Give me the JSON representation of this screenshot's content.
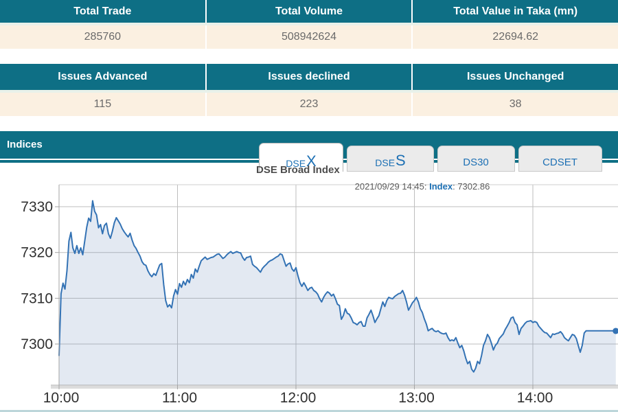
{
  "summary_tables": [
    {
      "headers": [
        "Total Trade",
        "Total Volume",
        "Total Value in Taka (mn)"
      ],
      "values": [
        "285760",
        "508942624",
        "22694.62"
      ]
    },
    {
      "headers": [
        "Issues Advanced",
        "Issues declined",
        "Issues Unchanged"
      ],
      "values": [
        "115",
        "223",
        "38"
      ]
    }
  ],
  "indices": {
    "section_title": "Indices",
    "tabs": [
      {
        "small": "DSE",
        "big": "X",
        "active": true
      },
      {
        "small": "DSE",
        "big": "S",
        "active": false
      },
      {
        "small": "DS30",
        "big": "",
        "active": false
      },
      {
        "small": "CDSET",
        "big": "",
        "active": false
      }
    ]
  },
  "chart_data": {
    "type": "area",
    "title": "DSE Broad Index",
    "annotation": {
      "prefix": "2021/09/29 14:45: ",
      "label": "Index",
      "separator": ": ",
      "value": "7302.86"
    },
    "x_axis": {
      "unit": "minutes since 10:00",
      "start": "10:00",
      "end": "14:45",
      "ticks": [
        {
          "label": "10:00",
          "minute": 0
        },
        {
          "label": "11:00",
          "minute": 60
        },
        {
          "label": "12:00",
          "minute": 120
        },
        {
          "label": "13:00",
          "minute": 180
        },
        {
          "label": "14:00",
          "minute": 240
        }
      ]
    },
    "y_axis": {
      "ticks": [
        7300,
        7310,
        7320,
        7330
      ],
      "range": [
        7291,
        7335
      ]
    },
    "grid": true,
    "legend": "none",
    "end_marker": true,
    "colors": {
      "line": "#3372b4",
      "fill": "rgba(101,135,183,0.18)",
      "grid": "#bdbdbd",
      "axis": "#a3a3a3",
      "axis_band": "#dcdcdc",
      "tick_text": "#2f2f2f"
    },
    "series": [
      {
        "name": "DSEX",
        "last_value": 7302.86,
        "points": [
          [
            0,
            7297.5
          ],
          [
            1,
            7311
          ],
          [
            2,
            7313.3
          ],
          [
            3,
            7312
          ],
          [
            4,
            7316
          ],
          [
            5,
            7322.5
          ],
          [
            6,
            7324.4
          ],
          [
            7,
            7321
          ],
          [
            8,
            7319.8
          ],
          [
            9,
            7321.5
          ],
          [
            10,
            7319.8
          ],
          [
            11,
            7321
          ],
          [
            12,
            7319.5
          ],
          [
            13,
            7322.5
          ],
          [
            14,
            7325.5
          ],
          [
            15,
            7327.5
          ],
          [
            16,
            7326.8
          ],
          [
            17,
            7331.3
          ],
          [
            18,
            7329
          ],
          [
            19,
            7328.2
          ],
          [
            20,
            7325.4
          ],
          [
            21,
            7326.1
          ],
          [
            22,
            7324.1
          ],
          [
            23,
            7325.9
          ],
          [
            24,
            7326.4
          ],
          [
            25,
            7324.1
          ],
          [
            26,
            7323.1
          ],
          [
            27,
            7324.6
          ],
          [
            28,
            7326.5
          ],
          [
            29,
            7327.6
          ],
          [
            30,
            7326.9
          ],
          [
            31,
            7326.2
          ],
          [
            32,
            7325.2
          ],
          [
            33,
            7324.5
          ],
          [
            34,
            7323.9
          ],
          [
            35,
            7323.4
          ],
          [
            36,
            7324.2
          ],
          [
            37,
            7322.7
          ],
          [
            38,
            7321.5
          ],
          [
            39,
            7320.9
          ],
          [
            40,
            7320
          ],
          [
            41,
            7319.2
          ],
          [
            42,
            7318
          ],
          [
            43,
            7317.4
          ],
          [
            44,
            7317.2
          ],
          [
            45,
            7316
          ],
          [
            46,
            7315.2
          ],
          [
            47,
            7314.7
          ],
          [
            48,
            7315.4
          ],
          [
            49,
            7315
          ],
          [
            50,
            7316.2
          ],
          [
            51,
            7317.3
          ],
          [
            52,
            7317.6
          ],
          [
            53,
            7313
          ],
          [
            54,
            7309.5
          ],
          [
            55,
            7308.1
          ],
          [
            56,
            7308.6
          ],
          [
            57,
            7307.9
          ],
          [
            58,
            7310.5
          ],
          [
            59,
            7311.9
          ],
          [
            60,
            7310.9
          ],
          [
            61,
            7313.2
          ],
          [
            62,
            7312.4
          ],
          [
            63,
            7313.7
          ],
          [
            64,
            7312.9
          ],
          [
            65,
            7314.1
          ],
          [
            66,
            7313.4
          ],
          [
            67,
            7315.2
          ],
          [
            68,
            7314.4
          ],
          [
            69,
            7316.4
          ],
          [
            70,
            7315.7
          ],
          [
            71,
            7317
          ],
          [
            72,
            7318.2
          ],
          [
            73,
            7318.6
          ],
          [
            74,
            7319
          ],
          [
            75,
            7318.5
          ],
          [
            76,
            7318.7
          ],
          [
            77,
            7318.9
          ],
          [
            78,
            7319
          ],
          [
            79,
            7319.3
          ],
          [
            80,
            7319.6
          ],
          [
            81,
            7319.7
          ],
          [
            82,
            7319.2
          ],
          [
            83,
            7318.7
          ],
          [
            84,
            7319
          ],
          [
            85,
            7319.5
          ],
          [
            86,
            7319.9
          ],
          [
            87,
            7320.2
          ],
          [
            88,
            7319.8
          ],
          [
            89,
            7320
          ],
          [
            90,
            7320.2
          ],
          [
            91,
            7320
          ],
          [
            92,
            7319.9
          ],
          [
            93,
            7318.9
          ],
          [
            94,
            7318.3
          ],
          [
            95,
            7318.9
          ],
          [
            96,
            7319
          ],
          [
            97,
            7319.2
          ],
          [
            98,
            7317.4
          ],
          [
            99,
            7317
          ],
          [
            100,
            7316.7
          ],
          [
            101,
            7316.2
          ],
          [
            102,
            7315.7
          ],
          [
            103,
            7316.5
          ],
          [
            104,
            7317
          ],
          [
            105,
            7317.4
          ],
          [
            106,
            7317.9
          ],
          [
            107,
            7318.2
          ],
          [
            108,
            7318.4
          ],
          [
            109,
            7318.7
          ],
          [
            110,
            7319
          ],
          [
            111,
            7319.2
          ],
          [
            112,
            7319.7
          ],
          [
            113,
            7319.5
          ],
          [
            114,
            7318.2
          ],
          [
            115,
            7317
          ],
          [
            116,
            7317.5
          ],
          [
            117,
            7317.7
          ],
          [
            118,
            7316.4
          ],
          [
            119,
            7315.9
          ],
          [
            120,
            7316.7
          ],
          [
            121,
            7314.9
          ],
          [
            122,
            7313.4
          ],
          [
            123,
            7312.6
          ],
          [
            124,
            7313.4
          ],
          [
            125,
            7312.6
          ],
          [
            126,
            7311.7
          ],
          [
            127,
            7312.2
          ],
          [
            128,
            7312.4
          ],
          [
            129,
            7311.7
          ],
          [
            130,
            7311.4
          ],
          [
            131,
            7310.9
          ],
          [
            132,
            7309.9
          ],
          [
            133,
            7309.2
          ],
          [
            134,
            7310.2
          ],
          [
            135,
            7310.9
          ],
          [
            136,
            7311.4
          ],
          [
            137,
            7311.1
          ],
          [
            138,
            7310.5
          ],
          [
            139,
            7310.9
          ],
          [
            140,
            7309.9
          ],
          [
            141,
            7308.7
          ],
          [
            142,
            7308.4
          ],
          [
            143,
            7305.4
          ],
          [
            144,
            7306.2
          ],
          [
            145,
            7307.7
          ],
          [
            146,
            7306.7
          ],
          [
            147,
            7306.5
          ],
          [
            148,
            7305.7
          ],
          [
            149,
            7304.7
          ],
          [
            150,
            7304.5
          ],
          [
            151,
            7304.2
          ],
          [
            152,
            7304.7
          ],
          [
            153,
            7304.9
          ],
          [
            154,
            7303.9
          ],
          [
            155,
            7303.9
          ],
          [
            156,
            7305.7
          ],
          [
            157,
            7306.5
          ],
          [
            158,
            7307.4
          ],
          [
            159,
            7306.2
          ],
          [
            160,
            7304.7
          ],
          [
            161,
            7305.5
          ],
          [
            162,
            7306.2
          ],
          [
            163,
            7307.7
          ],
          [
            164,
            7309.2
          ],
          [
            165,
            7308.2
          ],
          [
            166,
            7309.5
          ],
          [
            167,
            7310.2
          ],
          [
            168,
            7310
          ],
          [
            169,
            7309.9
          ],
          [
            170,
            7310.4
          ],
          [
            171,
            7310.7
          ],
          [
            172,
            7311
          ],
          [
            173,
            7311.1
          ],
          [
            174,
            7311.7
          ],
          [
            175,
            7310.7
          ],
          [
            176,
            7309.2
          ],
          [
            177,
            7307.4
          ],
          [
            178,
            7308.2
          ],
          [
            179,
            7309
          ],
          [
            180,
            7309.5
          ],
          [
            181,
            7310.2
          ],
          [
            182,
            7309.2
          ],
          [
            183,
            7307.7
          ],
          [
            184,
            7306.9
          ],
          [
            185,
            7305.5
          ],
          [
            186,
            7304.4
          ],
          [
            187,
            7302.9
          ],
          [
            188,
            7303.2
          ],
          [
            189,
            7303.4
          ],
          [
            190,
            7302.9
          ],
          [
            191,
            7302.7
          ],
          [
            192,
            7302.9
          ],
          [
            193,
            7302.5
          ],
          [
            194,
            7302.3
          ],
          [
            195,
            7302.2
          ],
          [
            196,
            7302.4
          ],
          [
            197,
            7301.4
          ],
          [
            198,
            7300.7
          ],
          [
            199,
            7300.9
          ],
          [
            200,
            7300.7
          ],
          [
            201,
            7301.4
          ],
          [
            202,
            7300.2
          ],
          [
            203,
            7299.2
          ],
          [
            204,
            7299.7
          ],
          [
            205,
            7298.5
          ],
          [
            206,
            7296.9
          ],
          [
            207,
            7295.7
          ],
          [
            208,
            7296.2
          ],
          [
            209,
            7294.5
          ],
          [
            210,
            7293.9
          ],
          [
            211,
            7294.7
          ],
          [
            212,
            7296.2
          ],
          [
            213,
            7295.7
          ],
          [
            214,
            7297.5
          ],
          [
            215,
            7299.7
          ],
          [
            216,
            7300.7
          ],
          [
            217,
            7302.1
          ],
          [
            218,
            7301.4
          ],
          [
            219,
            7300.2
          ],
          [
            220,
            7298.7
          ],
          [
            221,
            7299.7
          ],
          [
            222,
            7300.2
          ],
          [
            223,
            7301.2
          ],
          [
            224,
            7301.7
          ],
          [
            225,
            7302.2
          ],
          [
            226,
            7303.2
          ],
          [
            227,
            7303.9
          ],
          [
            228,
            7304.7
          ],
          [
            229,
            7305.7
          ],
          [
            230,
            7305.9
          ],
          [
            231,
            7304.7
          ],
          [
            232,
            7304.2
          ],
          [
            233,
            7302.1
          ],
          [
            234,
            7303.4
          ],
          [
            235,
            7303.9
          ],
          [
            236,
            7304.5
          ],
          [
            237,
            7304.9
          ],
          [
            238,
            7305
          ],
          [
            239,
            7305.1
          ],
          [
            240,
            7304.7
          ],
          [
            241,
            7304.9
          ],
          [
            242,
            7304.7
          ],
          [
            243,
            7303.9
          ],
          [
            244,
            7303.4
          ],
          [
            245,
            7302.9
          ],
          [
            246,
            7302.5
          ],
          [
            247,
            7302.4
          ],
          [
            248,
            7301.9
          ],
          [
            249,
            7301.4
          ],
          [
            250,
            7302.2
          ],
          [
            251,
            7302.1
          ],
          [
            252,
            7302.3
          ],
          [
            253,
            7302.4
          ],
          [
            254,
            7302.7
          ],
          [
            255,
            7302.2
          ],
          [
            256,
            7301.4
          ],
          [
            257,
            7301
          ],
          [
            258,
            7300.7
          ],
          [
            259,
            7301.4
          ],
          [
            260,
            7302.1
          ],
          [
            261,
            7301.9
          ],
          [
            262,
            7301.2
          ],
          [
            263,
            7299.7
          ],
          [
            264,
            7298.2
          ],
          [
            265,
            7299.7
          ],
          [
            266,
            7302.4
          ],
          [
            267,
            7302.9
          ],
          [
            272,
            7302.9
          ],
          [
            276,
            7302.9
          ],
          [
            280,
            7302.9
          ],
          [
            282,
            7302.86
          ]
        ]
      }
    ]
  },
  "colors": {
    "teal": "#0e6f85",
    "cream": "#fbf0e1",
    "separator": "#e9f1ea",
    "header_text": "#ffffff",
    "value_text": "#6a6a6a",
    "tab_blue": "#1d70b4",
    "tab_bg": "#ebebeb",
    "title_gray": "#4d4d4d",
    "annotation_gray": "#5c5c5c",
    "bottom_strip": "#bcd6da"
  }
}
